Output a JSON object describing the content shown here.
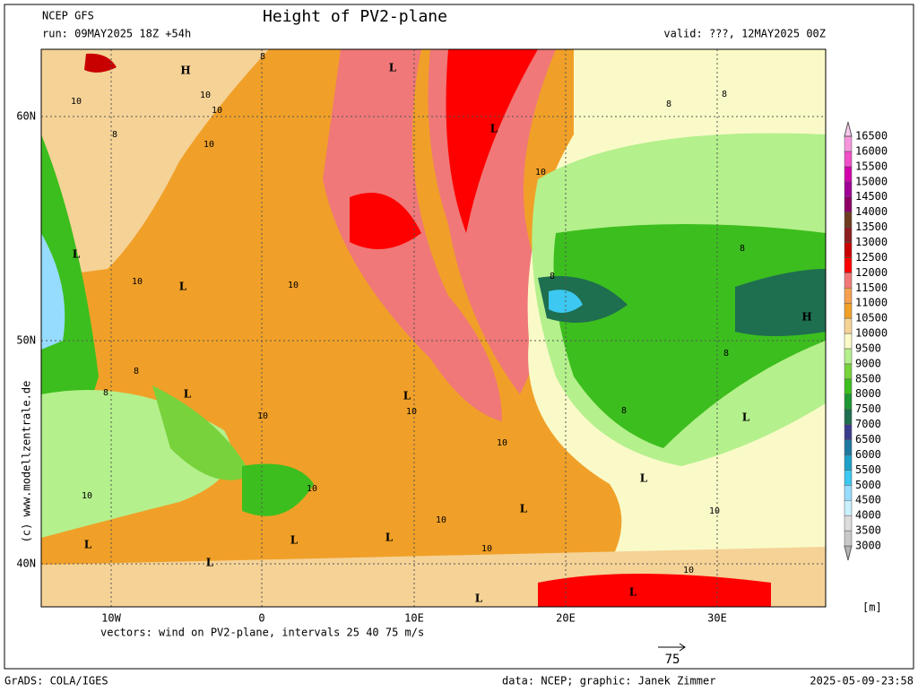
{
  "header": {
    "model": "NCEP GFS",
    "run": "run: 09MAY2025 18Z +54h",
    "title": "Height of PV2-plane",
    "valid": "valid: ???, 12MAY2025 00Z"
  },
  "axes": {
    "lat_labels": [
      "60N",
      "50N",
      "40N"
    ],
    "lon_labels": [
      "10W",
      "0",
      "10E",
      "20E",
      "30E"
    ]
  },
  "colorbar": {
    "levels": [
      3000,
      3500,
      4000,
      4500,
      5000,
      5500,
      6000,
      6500,
      7000,
      7500,
      8000,
      8500,
      9000,
      9500,
      10000,
      10500,
      11000,
      11500,
      12000,
      12500,
      13000,
      13500,
      14000,
      14500,
      15000,
      15500,
      16000,
      16500
    ],
    "colors": [
      "#b4b4b4",
      "#c8c8c8",
      "#dcdcdc",
      "#c8f0ff",
      "#96dcff",
      "#3cc8f0",
      "#1ea0c8",
      "#1e78a0",
      "#3c3c8c",
      "#1e6e50",
      "#1e9632",
      "#3cbe1e",
      "#78d23c",
      "#b4f08c",
      "#fafac8",
      "#f5d296",
      "#f0a028",
      "#f5a050",
      "#f07878",
      "#ff0000",
      "#c80000",
      "#8c1e1e",
      "#6e3c1e",
      "#8c0064",
      "#a00096",
      "#d200aa",
      "#f050c8",
      "#f596dc",
      "#fac8f0"
    ],
    "unit": "[m]"
  },
  "map": {
    "labels": [
      "H",
      "L",
      "L",
      "H",
      "L",
      "L",
      "L",
      "L",
      "L",
      "L",
      "L",
      "L",
      "L",
      "L",
      "L",
      "L",
      "L",
      "10",
      "10",
      "10",
      "10",
      "10",
      "10",
      "10",
      "10",
      "10",
      "10",
      "10",
      "10",
      "10",
      "10",
      "10",
      "10",
      "8",
      "8",
      "8",
      "8",
      "8",
      "8",
      "8",
      "8",
      "8",
      "8"
    ]
  },
  "footer": {
    "vectors": "vectors: wind on PV2-plane, intervals 25 40 75 m/s",
    "ref_vector": "75",
    "copyright": "(c) www.modellzentrale.de",
    "software": "GrADS: COLA/IGES",
    "credit": "data: NCEP; graphic: Janek Zimmer",
    "timestamp": "2025-05-09-23:58"
  }
}
